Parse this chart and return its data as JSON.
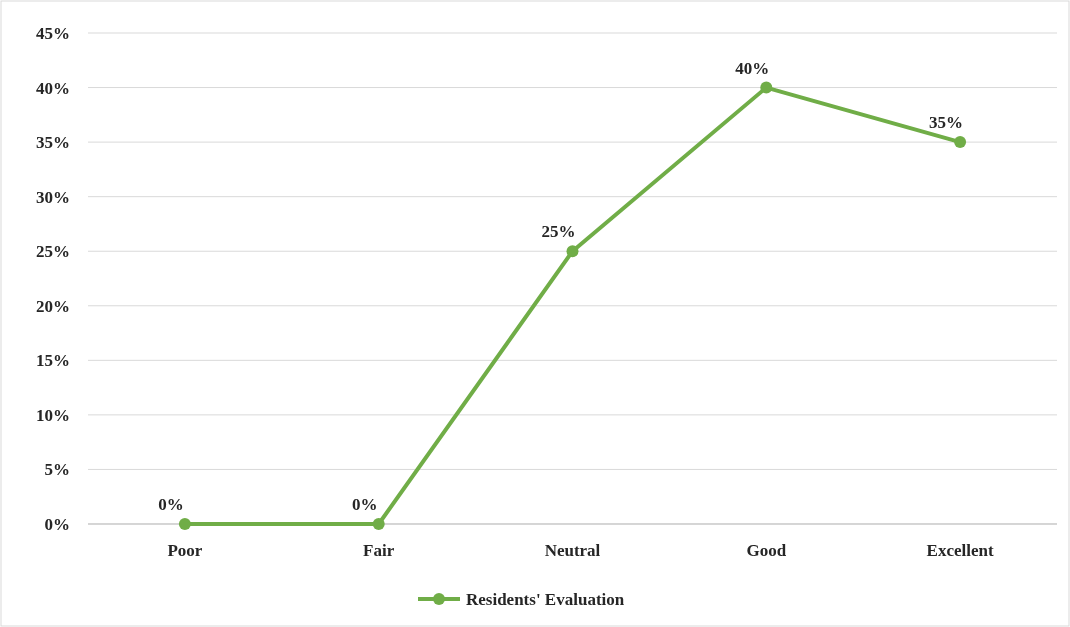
{
  "chart_data": {
    "type": "line",
    "categories": [
      "Poor",
      "Fair",
      "Neutral",
      "Good",
      "Excellent"
    ],
    "series": [
      {
        "name": "Residents' Evaluation",
        "color": "#70ad47",
        "values": [
          0,
          0,
          25,
          40,
          35
        ],
        "value_labels": [
          "0%",
          "0%",
          "25%",
          "40%",
          "35%"
        ]
      }
    ],
    "ylim": [
      0,
      45
    ],
    "yticks": [
      {
        "value": 0,
        "label": "0%"
      },
      {
        "value": 5,
        "label": "5%"
      },
      {
        "value": 10,
        "label": "10%"
      },
      {
        "value": 15,
        "label": "15%"
      },
      {
        "value": 20,
        "label": "20%"
      },
      {
        "value": 25,
        "label": "25%"
      },
      {
        "value": 30,
        "label": "30%"
      },
      {
        "value": 35,
        "label": "35%"
      },
      {
        "value": 40,
        "label": "40%"
      },
      {
        "value": 45,
        "label": "45%"
      }
    ],
    "grid": "y",
    "legend": "bottom",
    "marker": "circle",
    "line_style": "solid"
  }
}
